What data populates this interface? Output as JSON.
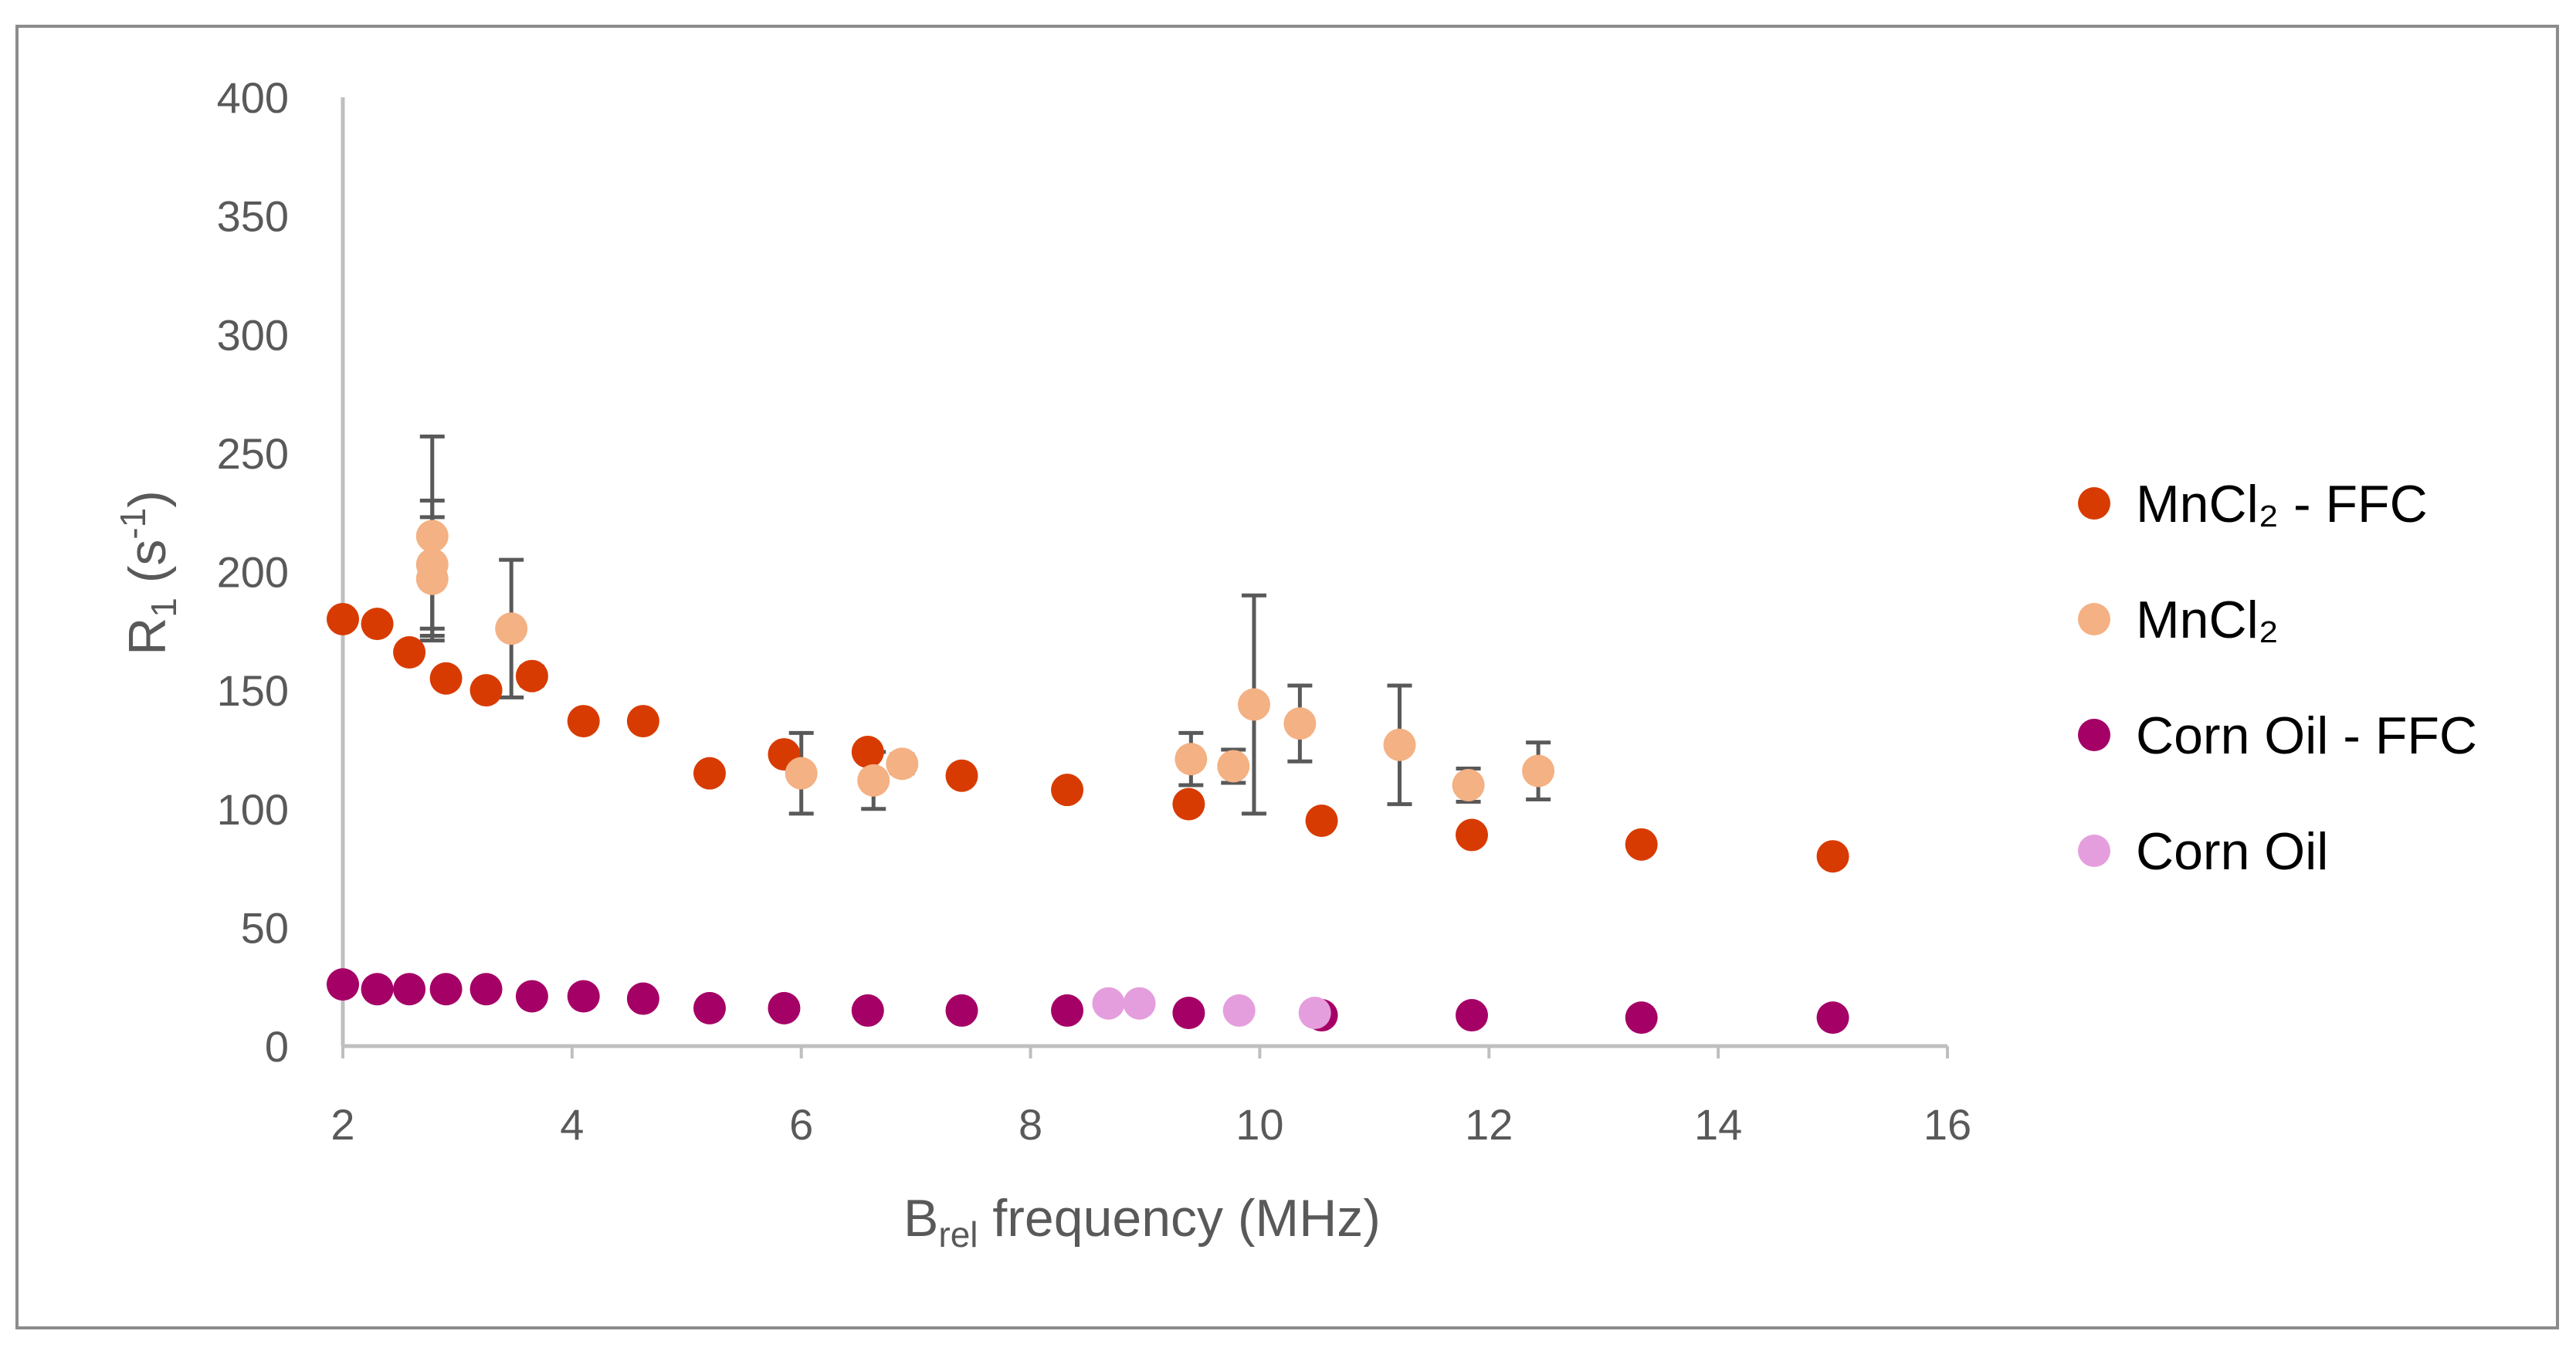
{
  "chart_data": {
    "type": "scatter",
    "title": "",
    "xlabel": {
      "main": "B",
      "sub": "rel",
      "rest": " frequency (MHz)"
    },
    "ylabel": {
      "main": "R",
      "sub": "1",
      "rest": " (s",
      "sup": "-1",
      "close": ")"
    },
    "xlim": [
      2,
      16
    ],
    "ylim": [
      0,
      400
    ],
    "xticks": [
      2,
      4,
      6,
      8,
      10,
      12,
      14,
      16
    ],
    "yticks": [
      0,
      50,
      100,
      150,
      200,
      250,
      300,
      350,
      400
    ],
    "grid": false,
    "legend_position": "right",
    "series": [
      {
        "name": "MnCl₂ - FFC",
        "color": "#d83b01",
        "x": [
          2.0,
          2.3,
          2.58,
          2.9,
          3.25,
          3.65,
          4.1,
          4.62,
          5.2,
          5.85,
          6.58,
          7.4,
          8.32,
          9.38,
          10.54,
          11.85,
          13.33,
          15.0
        ],
        "y": [
          180,
          178,
          166,
          155,
          150,
          156,
          137,
          137,
          115,
          123,
          124,
          114,
          108,
          102,
          95,
          89,
          85,
          80
        ],
        "err": [
          3,
          3,
          0,
          3,
          3,
          4,
          0,
          0,
          0,
          0,
          0,
          0,
          0,
          0,
          0,
          0,
          0,
          0
        ]
      },
      {
        "name": "MnCl₂",
        "color": "#f4b183",
        "x": [
          2.78,
          2.78,
          2.78,
          3.47,
          6.0,
          6.63,
          6.88,
          9.4,
          9.77,
          9.95,
          10.35,
          11.22,
          11.82,
          12.43
        ],
        "y": [
          215,
          203,
          197,
          176,
          115,
          112,
          119,
          121,
          118,
          144,
          136,
          127,
          110,
          116
        ],
        "err": [
          42,
          27,
          26,
          29,
          17,
          12,
          4,
          11,
          7,
          46,
          16,
          25,
          7,
          12
        ]
      },
      {
        "name": "Corn Oil - FFC",
        "color": "#a50066",
        "x": [
          2.0,
          2.3,
          2.58,
          2.9,
          3.25,
          3.65,
          4.1,
          4.62,
          5.2,
          5.85,
          6.58,
          7.4,
          8.32,
          9.38,
          10.54,
          11.85,
          13.33,
          15.0
        ],
        "y": [
          26,
          24,
          24,
          24,
          24,
          21,
          21,
          20,
          16,
          16,
          15,
          15,
          15,
          14,
          13,
          13,
          12,
          12
        ]
      },
      {
        "name": "Corn Oil",
        "color": "#e59edd",
        "x": [
          8.68,
          8.95,
          9.82,
          10.48
        ],
        "y": [
          18,
          18,
          15,
          14
        ]
      }
    ]
  }
}
